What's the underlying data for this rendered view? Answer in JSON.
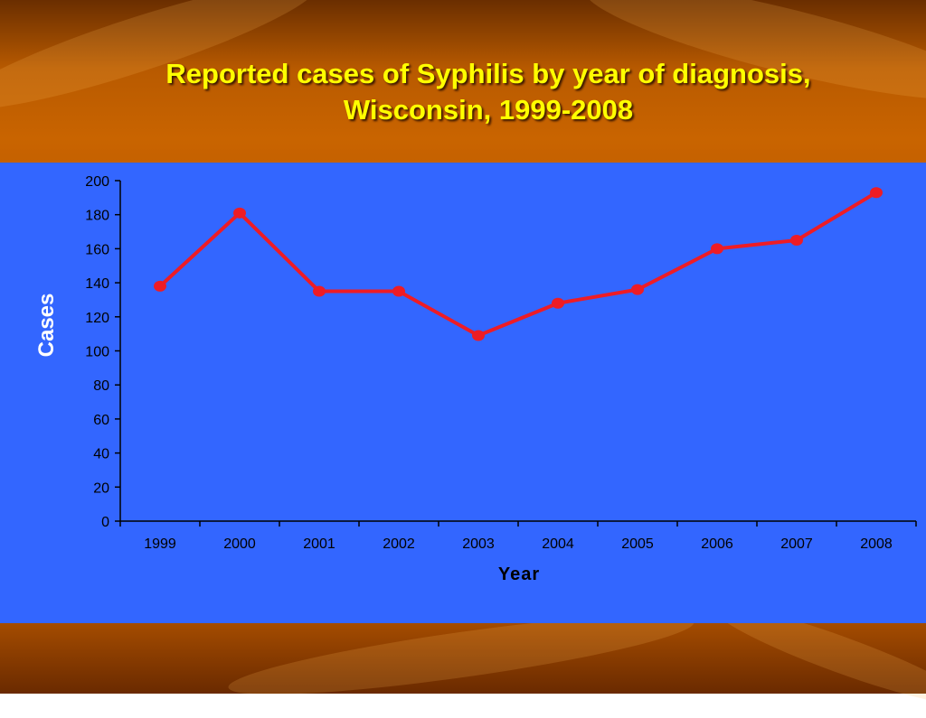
{
  "slide": {
    "title_line1": "Reported cases of Syphilis by year of diagnosis,",
    "title_line2": "Wisconsin, 1999-2008",
    "background_color": "#b85a00",
    "panel_color": "#3366ff",
    "title_color": "#ffff00"
  },
  "chart_data": {
    "type": "line",
    "title": "Reported cases of Syphilis by year of diagnosis, Wisconsin, 1999-2008",
    "xlabel": "Year",
    "ylabel": "Cases",
    "categories": [
      "1999",
      "2000",
      "2001",
      "2002",
      "2003",
      "2004",
      "2005",
      "2006",
      "2007",
      "2008"
    ],
    "series": [
      {
        "values": [
          138,
          181,
          135,
          135,
          109,
          128,
          136,
          160,
          165,
          193
        ],
        "color": "#ee1c25"
      }
    ],
    "ylim": [
      0,
      200
    ],
    "yticks": [
      0,
      20,
      40,
      60,
      80,
      100,
      120,
      140,
      160,
      180,
      200
    ],
    "grid": false,
    "legend": "none"
  }
}
